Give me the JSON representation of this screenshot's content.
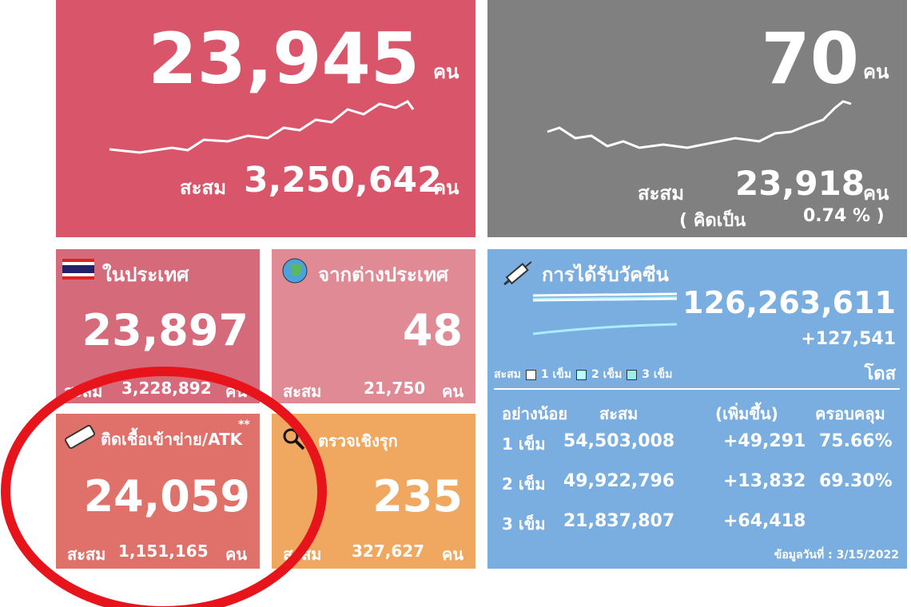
{
  "cases": {
    "value": "23,945",
    "unit": "คน",
    "cumulative_label": "สะสม",
    "cumulative": "3,250,642",
    "cumulative_unit": "คน"
  },
  "deaths": {
    "value": "70",
    "unit": "คน",
    "cumulative_label": "สะสม",
    "cumulative": "23,918",
    "cumulative_unit": "คน",
    "ratio_label": "( คิดเป็น",
    "ratio": "0.74 % )"
  },
  "tiles": [
    {
      "title": "ในประเทศ",
      "value": "23,897",
      "cumulative_label": "สะสม",
      "cumulative": "3,228,892",
      "unit": "คน"
    },
    {
      "title": "จากต่างประเทศ",
      "value": "48",
      "cumulative_label": "สะสม",
      "cumulative": "21,750",
      "unit": "คน"
    },
    {
      "title": "ติดเชื้อเข้าข่าย/ATK",
      "note": "**",
      "value": "24,059",
      "cumulative_label": "สะสม",
      "cumulative": "1,151,165",
      "unit": "คน"
    },
    {
      "title": "ตรวจเชิงรุก",
      "value": "235",
      "cumulative_label": "สะสม",
      "cumulative": "327,627",
      "unit": "คน"
    }
  ],
  "vaccine": {
    "title": "การได้รับวัคซีน",
    "total": "126,263,611",
    "increase": "+127,541",
    "unit": "โดส",
    "legend_label": "สะสม",
    "legend": [
      "1 เข็ม",
      "2 เข็ม",
      "3 เข็ม"
    ],
    "headers": [
      "อย่างน้อย",
      "สะสม",
      "(เพิ่มขึ้น)",
      "ครอบคลุม"
    ],
    "rows": [
      [
        "1 เข็ม",
        "54,503,008",
        "+49,291",
        "75.66%"
      ],
      [
        "2 เข็ม",
        "49,922,796",
        "+13,832",
        "69.30%"
      ],
      [
        "3 เข็ม",
        "21,837,807",
        "+64,418"
      ]
    ],
    "footer": "ข้อมูลวันที่ : 3/15/2022"
  }
}
